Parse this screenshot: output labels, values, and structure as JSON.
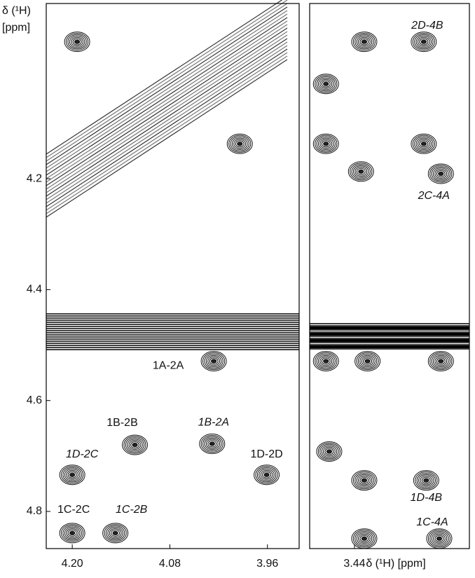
{
  "chart_data": [
    {
      "type": "contour",
      "ylabel": "δ (¹H)",
      "ylabel_unit": "[ppm]",
      "xlim": [
        4.232,
        3.921
      ],
      "ylim": [
        3.884,
        4.867
      ],
      "xticks": [
        {
          "value": 4.2,
          "label": "4.20"
        },
        4.08,
        3.96
      ],
      "yticks": [
        4.2,
        4.4,
        4.6,
        4.8
      ],
      "x": [
        4.026,
        4.123,
        4.028,
        4.2,
        3.961,
        4.2,
        4.147,
        4.194,
        3.994
      ],
      "y": [
        4.529,
        4.68,
        4.678,
        4.734,
        4.734,
        4.839,
        4.839,
        3.953,
        4.137
      ],
      "labels": [
        "1A-2A",
        "1B-2B",
        "1B-2A",
        "1D-2C",
        "1D-2D",
        "1C-2C",
        "1C-2B",
        null,
        null
      ],
      "italic": [
        false,
        false,
        true,
        true,
        false,
        false,
        true,
        false,
        false
      ]
    },
    {
      "type": "contour",
      "xlabel": "δ (¹H) [ppm]",
      "xlim": [
        3.495,
        3.299
      ],
      "ylim": [
        3.884,
        4.867
      ],
      "xticks": [
        3.44
      ],
      "x": [
        3.355,
        3.334,
        3.352,
        3.336,
        3.428,
        3.475,
        3.475,
        3.432,
        3.475,
        3.424,
        3.334,
        3.471,
        3.428,
        3.428,
        3.355
      ],
      "y": [
        3.953,
        4.191,
        4.744,
        4.849,
        3.953,
        4.029,
        4.137,
        4.187,
        4.529,
        4.529,
        4.529,
        4.692,
        4.744,
        4.849,
        4.137
      ],
      "labels": [
        "2D-4B",
        "2C-4A",
        "1D-4B",
        "1C-4A",
        null,
        null,
        null,
        null,
        null,
        null,
        null,
        null,
        null,
        null,
        null
      ],
      "italic": [
        true,
        true,
        true,
        true,
        false,
        false,
        false,
        false,
        false,
        false,
        false,
        false,
        false,
        false,
        false
      ]
    }
  ]
}
